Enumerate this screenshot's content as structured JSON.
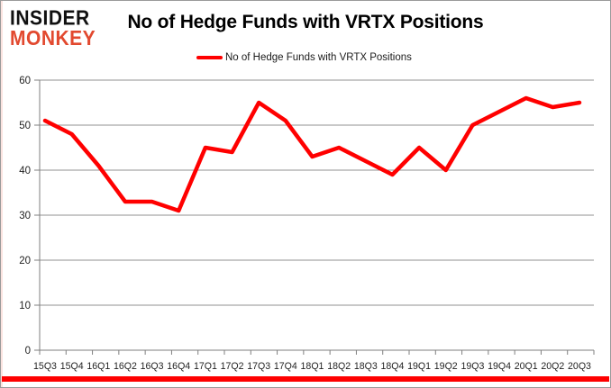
{
  "logo": {
    "line1": "INSIDER",
    "line2": "MONKEY"
  },
  "header": {
    "title": "No of Hedge Funds with VRTX Positions"
  },
  "legend": {
    "label": "No of Hedge Funds with VRTX Positions"
  },
  "colors": {
    "series_red": "#ff0000",
    "logo_red": "#e2492f",
    "gridline": "#919191",
    "axis_line": "#7f7f7f",
    "tick_text": "#1f1f1f",
    "bottom_bar_red": "#fe0000",
    "border_grey": "#9a9a9a"
  },
  "chart_data": {
    "type": "line",
    "title": "No of Hedge Funds with VRTX Positions",
    "categories": [
      "15Q3",
      "15Q4",
      "16Q1",
      "16Q2",
      "16Q3",
      "16Q4",
      "17Q1",
      "17Q2",
      "17Q3",
      "17Q4",
      "18Q1",
      "18Q2",
      "18Q3",
      "18Q4",
      "19Q1",
      "19Q2",
      "19Q3",
      "19Q4",
      "20Q1",
      "20Q2",
      "20Q3"
    ],
    "series": [
      {
        "name": "No of Hedge Funds with VRTX Positions",
        "color": "#ff0000",
        "values": [
          51,
          48,
          41,
          33,
          33,
          31,
          45,
          44,
          55,
          51,
          43,
          45,
          42,
          39,
          45,
          40,
          50,
          53,
          56,
          54,
          55
        ]
      }
    ],
    "xlabel": "",
    "ylabel": "",
    "ylim": [
      0,
      60
    ],
    "y_ticks": [
      0,
      10,
      20,
      30,
      40,
      50,
      60
    ],
    "grid": true,
    "legend_position": "top"
  }
}
